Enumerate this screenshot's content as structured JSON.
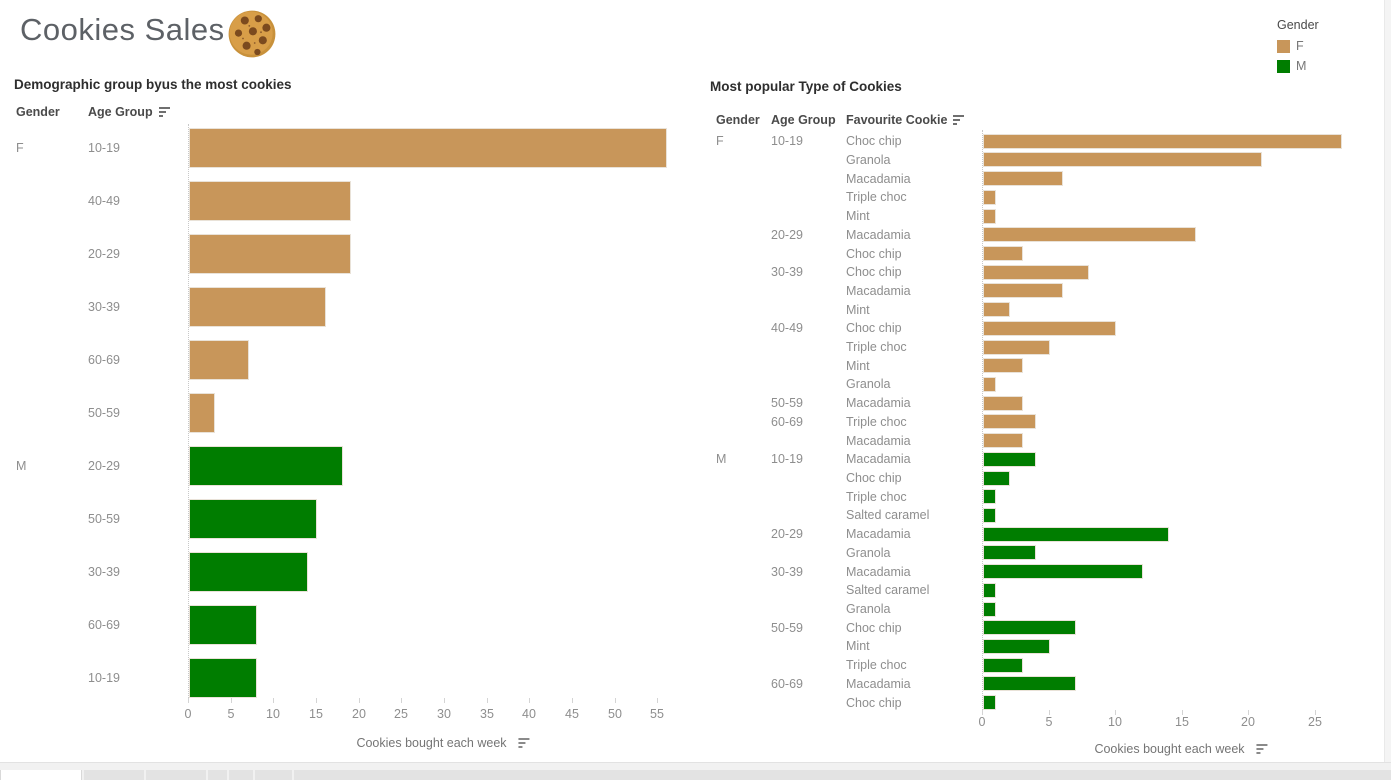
{
  "page": {
    "title": "Cookies Sales"
  },
  "legend": {
    "title": "Gender",
    "items": [
      {
        "label": "F",
        "color": "#C8965A"
      },
      {
        "label": "M",
        "color": "#007D00"
      }
    ]
  },
  "chart_data": [
    {
      "type": "bar",
      "orientation": "horizontal",
      "title": "Demographic group byus the most cookies",
      "column_headers": {
        "gender": "Gender",
        "age": "Age Group"
      },
      "xlabel": "Cookies bought each week",
      "xlim": [
        0,
        58
      ],
      "xticks": [
        0,
        5,
        10,
        15,
        20,
        25,
        30,
        35,
        40,
        45,
        50,
        55
      ],
      "grid": "off",
      "groups": [
        {
          "gender": "F",
          "color": "#C8965A",
          "rows": [
            {
              "age": "10-19",
              "value": 56
            },
            {
              "age": "40-49",
              "value": 19
            },
            {
              "age": "20-29",
              "value": 19
            },
            {
              "age": "30-39",
              "value": 16
            },
            {
              "age": "60-69",
              "value": 7
            },
            {
              "age": "50-59",
              "value": 3
            }
          ]
        },
        {
          "gender": "M",
          "color": "#007D00",
          "rows": [
            {
              "age": "20-29",
              "value": 18
            },
            {
              "age": "50-59",
              "value": 15
            },
            {
              "age": "30-39",
              "value": 14
            },
            {
              "age": "60-69",
              "value": 8
            },
            {
              "age": "10-19",
              "value": 8
            }
          ]
        }
      ]
    },
    {
      "type": "bar",
      "orientation": "horizontal",
      "title": "Most popular Type of Cookies",
      "column_headers": {
        "gender": "Gender",
        "age": "Age Group",
        "cookie": "Favourite Cookie"
      },
      "xlabel": "Cookies bought each week",
      "xlim": [
        0,
        27.8
      ],
      "xticks": [
        0,
        5,
        10,
        15,
        20,
        25
      ],
      "grid": "off",
      "groups": [
        {
          "gender": "F",
          "color": "#C8965A",
          "age_groups": [
            {
              "age": "10-19",
              "rows": [
                {
                  "cookie": "Choc chip",
                  "value": 27
                },
                {
                  "cookie": "Granola",
                  "value": 21
                },
                {
                  "cookie": "Macadamia",
                  "value": 6
                },
                {
                  "cookie": "Triple choc",
                  "value": 1
                },
                {
                  "cookie": "Mint",
                  "value": 1
                }
              ]
            },
            {
              "age": "20-29",
              "rows": [
                {
                  "cookie": "Macadamia",
                  "value": 16
                },
                {
                  "cookie": "Choc chip",
                  "value": 3
                }
              ]
            },
            {
              "age": "30-39",
              "rows": [
                {
                  "cookie": "Choc chip",
                  "value": 8
                },
                {
                  "cookie": "Macadamia",
                  "value": 6
                },
                {
                  "cookie": "Mint",
                  "value": 2
                }
              ]
            },
            {
              "age": "40-49",
              "rows": [
                {
                  "cookie": "Choc chip",
                  "value": 10
                },
                {
                  "cookie": "Triple choc",
                  "value": 5
                },
                {
                  "cookie": "Mint",
                  "value": 3
                },
                {
                  "cookie": "Granola",
                  "value": 1
                }
              ]
            },
            {
              "age": "50-59",
              "rows": [
                {
                  "cookie": "Macadamia",
                  "value": 3
                }
              ]
            },
            {
              "age": "60-69",
              "rows": [
                {
                  "cookie": "Triple choc",
                  "value": 4
                },
                {
                  "cookie": "Macadamia",
                  "value": 3
                }
              ]
            }
          ]
        },
        {
          "gender": "M",
          "color": "#007D00",
          "age_groups": [
            {
              "age": "10-19",
              "rows": [
                {
                  "cookie": "Macadamia",
                  "value": 4
                },
                {
                  "cookie": "Choc chip",
                  "value": 2
                },
                {
                  "cookie": "Triple choc",
                  "value": 1
                },
                {
                  "cookie": "Salted caramel",
                  "value": 1
                }
              ]
            },
            {
              "age": "20-29",
              "rows": [
                {
                  "cookie": "Macadamia",
                  "value": 14
                },
                {
                  "cookie": "Granola",
                  "value": 4
                }
              ]
            },
            {
              "age": "30-39",
              "rows": [
                {
                  "cookie": "Macadamia",
                  "value": 12
                },
                {
                  "cookie": "Salted caramel",
                  "value": 1
                },
                {
                  "cookie": "Granola",
                  "value": 1
                }
              ]
            },
            {
              "age": "50-59",
              "rows": [
                {
                  "cookie": "Choc chip",
                  "value": 7
                },
                {
                  "cookie": "Mint",
                  "value": 5
                },
                {
                  "cookie": "Triple choc",
                  "value": 3
                }
              ]
            },
            {
              "age": "60-69",
              "rows": [
                {
                  "cookie": "Macadamia",
                  "value": 7
                },
                {
                  "cookie": "Choc chip",
                  "value": 1
                }
              ]
            }
          ]
        }
      ]
    }
  ],
  "footer": {
    "tabs": [
      {
        "active": true
      },
      {
        "active": false
      },
      {
        "active": false
      },
      {
        "active": false
      },
      {
        "active": false
      },
      {
        "active": false
      },
      {
        "active": false
      }
    ]
  }
}
